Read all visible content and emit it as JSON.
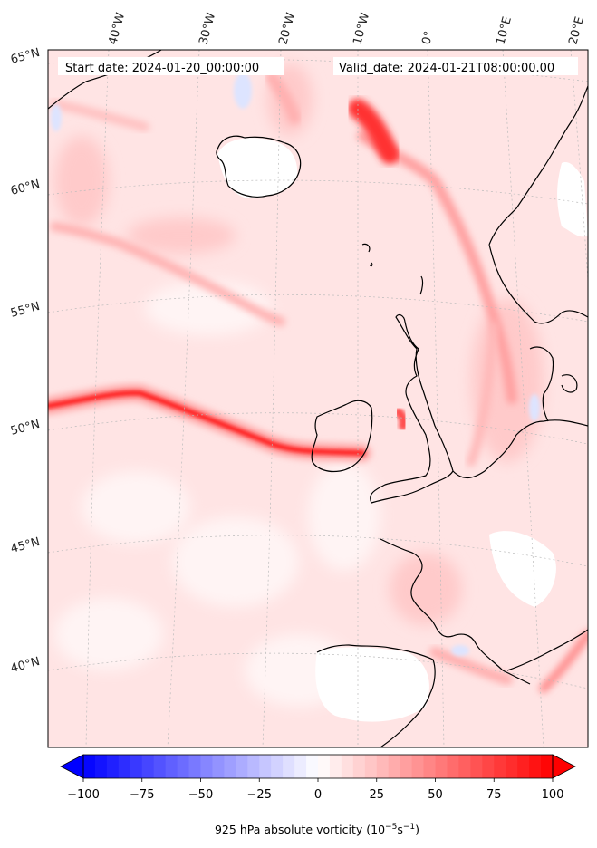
{
  "header": {
    "start_date": "Start date: 2024-01-20_00:00:00",
    "valid_date": "Valid_date: 2024-01-21T08:00:00.00"
  },
  "graticule": {
    "longitude_labels": [
      "40°W",
      "30°W",
      "20°W",
      "10°W",
      "0°",
      "10°E",
      "20°E"
    ],
    "latitude_labels": [
      "65°N",
      "60°N",
      "55°N",
      "50°N",
      "45°N",
      "40°N"
    ]
  },
  "colorbar": {
    "ticks": [
      "−100",
      "−75",
      "−50",
      "−25",
      "0",
      "25",
      "50",
      "75",
      "100"
    ],
    "min": -100,
    "max": 100,
    "step": 5,
    "colormap": "bwr",
    "extend": "both",
    "title": "925 hPa absolute vorticity (10",
    "title_exp1": "−5",
    "title_mid": "s",
    "title_exp2": "−1",
    "title_end": ")"
  },
  "colors": {
    "coast": "#000000",
    "background_field": "#ffe2e2",
    "strong_positive": "#ff0000",
    "strong_negative": "#0000ff",
    "land_low_vorticity": "#ffffff",
    "gridline": "#bbbbbb"
  }
}
